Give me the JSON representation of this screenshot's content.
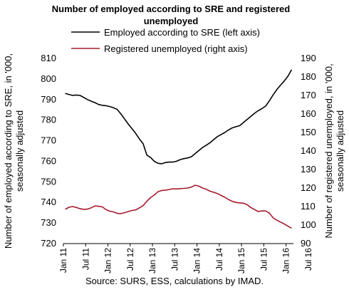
{
  "chart_data": {
    "type": "line",
    "title": "Number of employed according to SRE and registered unemployed",
    "source": "Source: SURS, ESS, calculations by IMAD.",
    "ylabel_left": "Number of employed according to SRE, in '000, seasonally adjusted",
    "ylabel_right": "Number of registered unemployed, in '000, seasonally adjusted",
    "ylim_left": [
      720,
      810
    ],
    "yticks_left": [
      720,
      730,
      740,
      750,
      760,
      770,
      780,
      790,
      800,
      810
    ],
    "ylim_right": [
      90,
      190
    ],
    "yticks_right": [
      90,
      100,
      110,
      120,
      130,
      140,
      150,
      160,
      170,
      180,
      190
    ],
    "x_tick_labels": [
      "Jan 11",
      "Jul 11",
      "Jan 12",
      "Jul 12",
      "Jan 13",
      "Jul 13",
      "Jan 14",
      "Jul 14",
      "Jan 15",
      "Jul 15",
      "Jan 16",
      "Jul 16"
    ],
    "x_start": "Jan 11",
    "legend_position": "top",
    "grid": false,
    "series": [
      {
        "name": "Employed according to SRE (left axis)",
        "axis": "left",
        "color": "#000000",
        "values": [
          793.0,
          792.5,
          792.0,
          792.2,
          792.0,
          791.0,
          790.0,
          789.2,
          788.5,
          787.6,
          787.2,
          787.0,
          786.6,
          786.0,
          785.2,
          783.0,
          780.5,
          778.0,
          775.8,
          773.5,
          770.8,
          768.5,
          763.0,
          761.8,
          760.0,
          759.0,
          758.8,
          759.4,
          759.6,
          759.6,
          760.0,
          760.8,
          761.3,
          761.6,
          762.2,
          763.7,
          765.2,
          766.7,
          767.8,
          769.0,
          770.5,
          772.0,
          773.0,
          774.0,
          775.2,
          776.2,
          776.8,
          777.3,
          778.8,
          780.3,
          781.8,
          783.3,
          784.6,
          785.6,
          786.8,
          789.3,
          792.2,
          794.8,
          797.0,
          799.0,
          801.3,
          804.5
        ]
      },
      {
        "name": "Registered unemployed (right axis)",
        "axis": "right",
        "color": "#a6192e",
        "values": [
          108.5,
          109.6,
          110.0,
          109.5,
          108.8,
          108.5,
          108.6,
          109.3,
          110.3,
          110.1,
          109.8,
          108.3,
          107.5,
          107.1,
          106.3,
          106.2,
          106.7,
          107.3,
          107.9,
          108.2,
          109.3,
          110.5,
          112.9,
          114.8,
          116.2,
          118.0,
          118.7,
          118.8,
          119.2,
          119.6,
          119.5,
          119.7,
          119.8,
          120.0,
          120.5,
          121.5,
          121.0,
          120.0,
          119.3,
          118.3,
          117.7,
          117.0,
          116.0,
          115.0,
          113.8,
          112.8,
          112.2,
          112.0,
          111.8,
          111.0,
          109.5,
          108.4,
          107.3,
          107.6,
          107.6,
          106.5,
          104.0,
          102.6,
          101.6,
          100.6,
          99.4,
          98.3
        ]
      }
    ]
  }
}
